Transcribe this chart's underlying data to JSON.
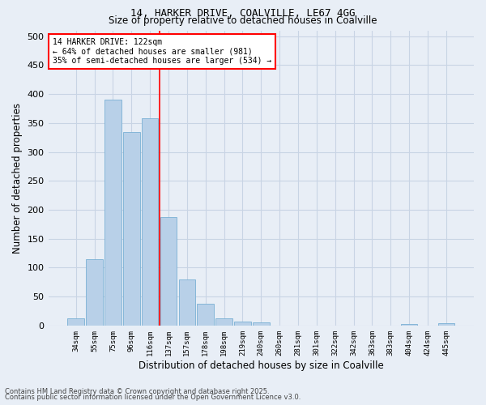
{
  "title1": "14, HARKER DRIVE, COALVILLE, LE67 4GG",
  "title2": "Size of property relative to detached houses in Coalville",
  "xlabel": "Distribution of detached houses by size in Coalville",
  "ylabel": "Number of detached properties",
  "categories": [
    "34sqm",
    "55sqm",
    "75sqm",
    "96sqm",
    "116sqm",
    "137sqm",
    "157sqm",
    "178sqm",
    "198sqm",
    "219sqm",
    "240sqm",
    "260sqm",
    "281sqm",
    "301sqm",
    "322sqm",
    "342sqm",
    "363sqm",
    "383sqm",
    "404sqm",
    "424sqm",
    "445sqm"
  ],
  "values": [
    13,
    115,
    390,
    335,
    358,
    188,
    80,
    38,
    13,
    7,
    5,
    0,
    0,
    0,
    0,
    0,
    0,
    0,
    2,
    0,
    4
  ],
  "bar_color": "#b8d0e8",
  "bar_edge_color": "#7ab0d4",
  "property_line_x": 4.5,
  "property_line_color": "red",
  "annotation_text": "14 HARKER DRIVE: 122sqm\n← 64% of detached houses are smaller (981)\n35% of semi-detached houses are larger (534) →",
  "annotation_box_color": "white",
  "annotation_edge_color": "red",
  "grid_color": "#c8d4e4",
  "bg_color": "#e8eef6",
  "ylim": [
    0,
    510
  ],
  "yticks": [
    0,
    50,
    100,
    150,
    200,
    250,
    300,
    350,
    400,
    450,
    500
  ],
  "footer1": "Contains HM Land Registry data © Crown copyright and database right 2025.",
  "footer2": "Contains public sector information licensed under the Open Government Licence v3.0."
}
